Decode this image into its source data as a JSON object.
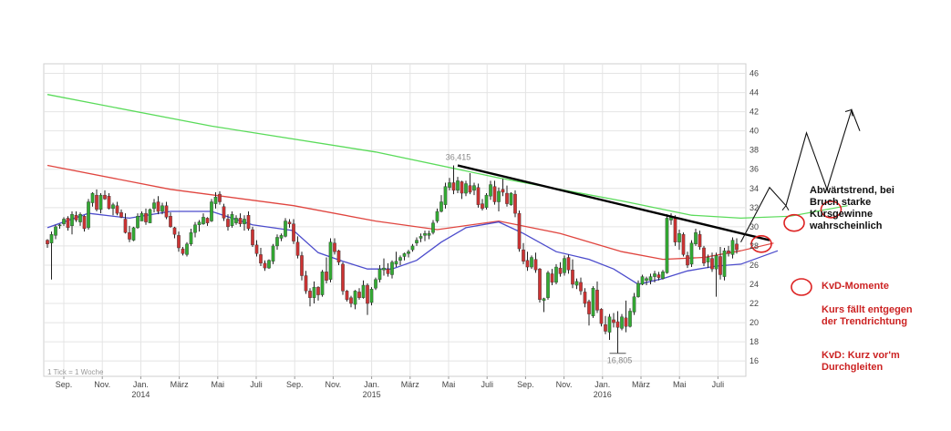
{
  "chart_data": {
    "type": "candlestick",
    "title": "",
    "xlabel": "",
    "ylabel": "",
    "ylim": [
      14.4,
      47
    ],
    "yticks": [
      16,
      18,
      20,
      22,
      24,
      26,
      28,
      30,
      32,
      34,
      36,
      38,
      40,
      42,
      44,
      46
    ],
    "x_month_labels": [
      "Sep.",
      "Nov.",
      "Jan.",
      "März",
      "Mai",
      "Juli",
      "Sep.",
      "Nov.",
      "Jan.",
      "März",
      "Mai",
      "Juli",
      "Sep.",
      "Nov.",
      "Jan.",
      "März",
      "Mai",
      "Juli"
    ],
    "x_year_labels": [
      {
        "label": "2014",
        "month_index": 2
      },
      {
        "label": "2015",
        "month_index": 8
      },
      {
        "label": "2016",
        "month_index": 14
      }
    ],
    "tick_info": "1 Tick = 1 Woche",
    "high_label": "36,415",
    "low_label": "16,805",
    "candles": [
      [
        0,
        28.6,
        28.7,
        27.8,
        28.2
      ],
      [
        1,
        28.3,
        29.5,
        24.5,
        29.2
      ],
      [
        2,
        29.1,
        30.2,
        28.7,
        30.0
      ],
      [
        3,
        30.1,
        30.3,
        29.8,
        30.2
      ],
      [
        4,
        30.3,
        31.0,
        30.1,
        30.8
      ],
      [
        5,
        30.9,
        31.1,
        29.6,
        29.9
      ],
      [
        6,
        30.1,
        31.6,
        29.2,
        31.3
      ],
      [
        7,
        31.2,
        31.6,
        30.5,
        30.7
      ],
      [
        8,
        30.5,
        31.5,
        30.1,
        31.3
      ],
      [
        9,
        31.1,
        31.2,
        29.5,
        29.8
      ],
      [
        10,
        29.9,
        32.9,
        29.7,
        32.6
      ],
      [
        11,
        32.5,
        33.6,
        32.1,
        33.5
      ],
      [
        12,
        33.3,
        33.9,
        31.6,
        31.8
      ],
      [
        13,
        31.8,
        33.5,
        31.4,
        33.3
      ],
      [
        14,
        33.3,
        33.8,
        32.8,
        32.9
      ],
      [
        15,
        33.2,
        33.5,
        31.8,
        31.9
      ],
      [
        16,
        31.9,
        32.5,
        31.2,
        32.3
      ],
      [
        17,
        32.2,
        32.6,
        31.2,
        31.4
      ],
      [
        18,
        31.5,
        31.8,
        30.9,
        31.0
      ],
      [
        19,
        30.8,
        31.4,
        29.3,
        29.4
      ],
      [
        20,
        29.4,
        30.1,
        28.4,
        28.7
      ],
      [
        21,
        28.6,
        30.0,
        28.5,
        29.9
      ],
      [
        22,
        29.9,
        31.4,
        29.8,
        31.1
      ],
      [
        23,
        30.6,
        31.6,
        30.6,
        31.4
      ],
      [
        24,
        31.4,
        31.9,
        30.2,
        30.5
      ],
      [
        25,
        30.4,
        31.9,
        30.4,
        31.8
      ],
      [
        26,
        31.9,
        32.9,
        31.5,
        32.5
      ],
      [
        27,
        32.6,
        33.2,
        31.3,
        31.6
      ],
      [
        28,
        31.6,
        32.5,
        31.3,
        32.2
      ],
      [
        29,
        32.2,
        32.6,
        30.8,
        31.0
      ],
      [
        30,
        31.1,
        31.5,
        29.9,
        30.0
      ],
      [
        31,
        29.9,
        30.0,
        28.8,
        29.2
      ],
      [
        32,
        29.1,
        29.5,
        27.4,
        27.8
      ],
      [
        33,
        27.7,
        27.9,
        27.0,
        27.2
      ],
      [
        34,
        27.1,
        28.4,
        26.9,
        28.2
      ],
      [
        35,
        28.2,
        29.8,
        28.0,
        29.4
      ],
      [
        36,
        29.4,
        30.5,
        28.9,
        30.2
      ],
      [
        37,
        30.2,
        30.7,
        29.5,
        30.5
      ],
      [
        38,
        30.3,
        31.4,
        30.2,
        31.0
      ],
      [
        39,
        30.9,
        31.0,
        30.1,
        30.4
      ],
      [
        40,
        30.6,
        32.9,
        30.5,
        32.6
      ],
      [
        41,
        32.4,
        33.6,
        31.9,
        33.1
      ],
      [
        42,
        33.4,
        33.7,
        32.3,
        32.6
      ],
      [
        43,
        32.1,
        32.4,
        30.6,
        30.9
      ],
      [
        44,
        30.8,
        31.3,
        29.6,
        30.0
      ],
      [
        45,
        30.1,
        31.6,
        29.9,
        31.3
      ],
      [
        46,
        30.4,
        31.2,
        30.2,
        30.9
      ],
      [
        47,
        30.9,
        31.4,
        30.0,
        30.3
      ],
      [
        48,
        30.3,
        31.2,
        29.6,
        30.8
      ],
      [
        49,
        31.2,
        31.6,
        29.6,
        29.8
      ],
      [
        50,
        29.7,
        30.0,
        27.9,
        28.1
      ],
      [
        51,
        28.1,
        28.6,
        26.9,
        27.2
      ],
      [
        52,
        27.1,
        27.8,
        25.9,
        26.2
      ],
      [
        53,
        26.2,
        26.5,
        25.4,
        25.7
      ],
      [
        54,
        25.7,
        26.6,
        25.6,
        26.5
      ],
      [
        55,
        26.4,
        28.2,
        26.1,
        28.0
      ],
      [
        56,
        28.0,
        29.2,
        27.6,
        28.9
      ],
      [
        57,
        28.8,
        29.3,
        28.5,
        29.1
      ],
      [
        58,
        29.0,
        30.9,
        28.9,
        30.6
      ],
      [
        59,
        30.5,
        30.8,
        29.9,
        30.3
      ],
      [
        60,
        30.3,
        30.8,
        28.2,
        28.5
      ],
      [
        61,
        28.4,
        29.0,
        26.7,
        27.0
      ],
      [
        62,
        27.0,
        27.4,
        24.4,
        24.9
      ],
      [
        63,
        24.9,
        25.4,
        23.0,
        23.3
      ],
      [
        64,
        23.3,
        23.6,
        21.7,
        22.6
      ],
      [
        65,
        22.6,
        24.3,
        22.0,
        23.7
      ],
      [
        66,
        23.7,
        23.8,
        22.3,
        22.9
      ],
      [
        67,
        22.9,
        25.5,
        22.7,
        25.3
      ],
      [
        68,
        25.3,
        26.8,
        24.1,
        24.4
      ],
      [
        69,
        24.5,
        28.8,
        24.2,
        28.4
      ],
      [
        70,
        28.3,
        28.8,
        27.1,
        27.4
      ],
      [
        71,
        27.5,
        27.6,
        26.0,
        26.3
      ],
      [
        72,
        26.1,
        26.3,
        22.9,
        23.3
      ],
      [
        73,
        23.3,
        23.4,
        22.2,
        22.4
      ],
      [
        74,
        22.6,
        22.8,
        21.6,
        22.0
      ],
      [
        75,
        21.9,
        23.4,
        21.4,
        23.3
      ],
      [
        76,
        23.2,
        23.6,
        22.4,
        22.6
      ],
      [
        77,
        22.6,
        24.4,
        22.5,
        23.9
      ],
      [
        78,
        23.9,
        24.1,
        20.8,
        22.0
      ],
      [
        79,
        22.1,
        23.7,
        21.8,
        23.5
      ],
      [
        80,
        23.6,
        24.7,
        23.4,
        24.5
      ],
      [
        81,
        24.5,
        26.0,
        24.2,
        25.6
      ],
      [
        82,
        25.5,
        26.7,
        24.9,
        25.7
      ],
      [
        83,
        25.6,
        26.2,
        24.8,
        25.1
      ],
      [
        84,
        25.0,
        26.5,
        24.6,
        26.3
      ],
      [
        85,
        26.1,
        27.4,
        25.8,
        26.4
      ],
      [
        86,
        26.5,
        27.0,
        26.0,
        26.8
      ],
      [
        87,
        26.9,
        27.3,
        26.5,
        27.2
      ],
      [
        88,
        27.2,
        27.6,
        26.8,
        27.4
      ],
      [
        89,
        27.6,
        28.2,
        27.4,
        28.0
      ],
      [
        90,
        28.3,
        28.9,
        28.0,
        28.6
      ],
      [
        91,
        28.8,
        29.3,
        28.4,
        29.0
      ],
      [
        92,
        29.1,
        29.6,
        28.5,
        29.3
      ],
      [
        93,
        29.1,
        29.6,
        28.7,
        29.3
      ],
      [
        94,
        29.4,
        30.7,
        29.2,
        30.4
      ],
      [
        95,
        30.6,
        31.9,
        30.4,
        31.6
      ],
      [
        96,
        31.6,
        33.3,
        31.5,
        32.6
      ],
      [
        97,
        32.3,
        34.6,
        31.9,
        34.2
      ],
      [
        98,
        34.1,
        35.1,
        33.8,
        34.6
      ],
      [
        99,
        34.6,
        36.4,
        33.4,
        33.8
      ],
      [
        100,
        33.8,
        35.2,
        33.5,
        34.8
      ],
      [
        101,
        34.7,
        34.8,
        32.9,
        33.5
      ],
      [
        102,
        33.5,
        34.8,
        33.2,
        34.5
      ],
      [
        103,
        34.3,
        35.6,
        33.4,
        33.6
      ],
      [
        104,
        33.8,
        34.6,
        33.3,
        34.3
      ],
      [
        105,
        34.1,
        34.5,
        32.0,
        32.3
      ],
      [
        106,
        32.4,
        32.9,
        31.7,
        31.9
      ],
      [
        107,
        32.0,
        33.5,
        31.8,
        33.3
      ],
      [
        108,
        33.2,
        34.8,
        32.8,
        34.4
      ],
      [
        109,
        34.2,
        34.8,
        32.3,
        32.6
      ],
      [
        110,
        32.6,
        34.1,
        31.6,
        33.7
      ],
      [
        111,
        33.9,
        35.0,
        33.2,
        33.6
      ],
      [
        112,
        33.5,
        34.3,
        32.1,
        32.4
      ],
      [
        113,
        32.3,
        33.6,
        32.2,
        33.5
      ],
      [
        114,
        33.4,
        33.8,
        31.0,
        31.4
      ],
      [
        115,
        31.4,
        31.7,
        27.4,
        27.7
      ],
      [
        116,
        27.6,
        28.3,
        26.1,
        26.4
      ],
      [
        117,
        26.5,
        27.4,
        25.4,
        25.8
      ],
      [
        118,
        25.8,
        27.0,
        25.6,
        26.8
      ],
      [
        119,
        26.6,
        27.3,
        25.2,
        25.5
      ],
      [
        120,
        25.6,
        25.7,
        22.1,
        22.4
      ],
      [
        121,
        22.3,
        22.6,
        21.1,
        22.5
      ],
      [
        122,
        22.6,
        25.4,
        22.4,
        25.2
      ],
      [
        123,
        25.1,
        25.6,
        23.9,
        24.2
      ],
      [
        124,
        24.2,
        26.1,
        24.0,
        25.8
      ],
      [
        125,
        25.7,
        26.3,
        24.8,
        25.1
      ],
      [
        126,
        25.2,
        27.0,
        24.9,
        26.7
      ],
      [
        127,
        26.8,
        27.1,
        25.1,
        25.5
      ],
      [
        128,
        25.5,
        26.6,
        23.6,
        24.0
      ],
      [
        129,
        23.9,
        24.6,
        23.5,
        24.3
      ],
      [
        130,
        24.2,
        24.7,
        22.9,
        23.3
      ],
      [
        131,
        23.2,
        23.6,
        21.6,
        22.0
      ],
      [
        132,
        22.2,
        22.4,
        19.7,
        20.9
      ],
      [
        133,
        20.7,
        23.8,
        20.5,
        23.6
      ],
      [
        134,
        23.4,
        24.3,
        21.0,
        21.3
      ],
      [
        135,
        21.4,
        21.5,
        19.6,
        19.9
      ],
      [
        136,
        19.8,
        20.7,
        18.8,
        19.1
      ],
      [
        137,
        19.0,
        20.9,
        18.2,
        20.6
      ],
      [
        138,
        20.3,
        21.0,
        19.5,
        20.0
      ],
      [
        139,
        20.1,
        21.2,
        16.8,
        19.5
      ],
      [
        140,
        19.4,
        20.9,
        19.2,
        20.6
      ],
      [
        141,
        20.5,
        22.3,
        19.0,
        19.6
      ],
      [
        142,
        19.6,
        21.5,
        19.5,
        21.2
      ],
      [
        143,
        21.1,
        23.1,
        20.8,
        22.7
      ],
      [
        144,
        22.7,
        24.4,
        22.6,
        24.1
      ],
      [
        145,
        24.0,
        25.0,
        23.9,
        24.8
      ],
      [
        146,
        24.4,
        24.8,
        23.9,
        24.6
      ],
      [
        147,
        24.4,
        25.1,
        24.0,
        24.8
      ],
      [
        148,
        24.8,
        25.4,
        24.2,
        25.1
      ],
      [
        149,
        25.0,
        25.3,
        24.4,
        24.7
      ],
      [
        150,
        24.6,
        25.5,
        24.5,
        25.3
      ],
      [
        151,
        25.2,
        31.3,
        25.1,
        30.9
      ],
      [
        152,
        30.7,
        31.4,
        30.2,
        31.0
      ],
      [
        153,
        30.9,
        31.2,
        28.0,
        28.4
      ],
      [
        154,
        28.4,
        29.7,
        27.6,
        29.3
      ],
      [
        155,
        29.2,
        29.4,
        26.9,
        27.1
      ],
      [
        156,
        27.0,
        27.4,
        25.7,
        26.0
      ],
      [
        157,
        26.1,
        28.6,
        25.8,
        28.3
      ],
      [
        158,
        28.2,
        29.8,
        28.0,
        29.4
      ],
      [
        159,
        29.2,
        29.6,
        27.6,
        27.9
      ],
      [
        160,
        27.8,
        28.0,
        25.9,
        26.2
      ],
      [
        161,
        26.3,
        27.1,
        25.7,
        26.8
      ],
      [
        162,
        26.7,
        27.3,
        25.3,
        25.6
      ],
      [
        163,
        25.6,
        27.3,
        22.7,
        27.0
      ],
      [
        164,
        26.9,
        27.9,
        24.5,
        25.0
      ],
      [
        165,
        24.8,
        27.8,
        24.4,
        27.5
      ],
      [
        166,
        27.5,
        28.0,
        26.9,
        27.2
      ],
      [
        167,
        27.1,
        28.9,
        26.7,
        28.6
      ],
      [
        168,
        28.2,
        28.8,
        27.2,
        27.6
      ]
    ],
    "series": [
      {
        "name": "",
        "color": "#5adb5a",
        "points": [
          [
            0,
            43.8
          ],
          [
            40,
            40.5
          ],
          [
            80,
            37.8
          ],
          [
            110,
            35.1
          ],
          [
            140,
            32.7
          ],
          [
            157,
            31.2
          ],
          [
            169,
            30.9
          ]
        ]
      },
      {
        "name": "",
        "color": "#e0453f",
        "points": [
          [
            0,
            36.4
          ],
          [
            30,
            33.9
          ],
          [
            60,
            32.2
          ],
          [
            80,
            30.6
          ],
          [
            95,
            29.7
          ],
          [
            110,
            30.6
          ],
          [
            125,
            29.3
          ],
          [
            140,
            27.4
          ],
          [
            150,
            26.6
          ],
          [
            160,
            26.8
          ],
          [
            169,
            27.5
          ]
        ]
      },
      {
        "name": "",
        "color": "#4c4ccc",
        "points": [
          [
            0,
            29.9
          ],
          [
            10,
            31.4
          ],
          [
            20,
            30.9
          ],
          [
            30,
            31.6
          ],
          [
            40,
            31.6
          ],
          [
            50,
            30.2
          ],
          [
            60,
            29.6
          ],
          [
            66,
            27.3
          ],
          [
            72,
            26.4
          ],
          [
            78,
            25.6
          ],
          [
            84,
            25.6
          ],
          [
            90,
            26.5
          ],
          [
            96,
            28.4
          ],
          [
            102,
            29.9
          ],
          [
            110,
            30.5
          ],
          [
            116,
            29.3
          ],
          [
            124,
            27.4
          ],
          [
            132,
            26.6
          ],
          [
            138,
            25.6
          ],
          [
            144,
            24.0
          ],
          [
            150,
            24.6
          ],
          [
            156,
            25.4
          ],
          [
            163,
            25.9
          ],
          [
            169,
            26.1
          ]
        ]
      }
    ],
    "trendline": [
      [
        100,
        36.4
      ],
      [
        176,
        28.6
      ]
    ],
    "extensions": {
      "projection_arrow": [
        [
          169,
          28.4
        ],
        [
          176,
          34.1
        ],
        [
          180,
          32.2
        ],
        [
          185,
          39.8
        ],
        [
          190,
          33.9
        ],
        [
          196,
          42.2
        ],
        [
          198,
          40.0
        ]
      ],
      "green_extension": [
        [
          169,
          30.9
        ],
        [
          181,
          31.1
        ],
        [
          195,
          32.2
        ]
      ],
      "red_extension": [
        [
          169,
          27.5
        ],
        [
          177,
          28.3
        ]
      ],
      "blue_extension": [
        [
          169,
          26.1
        ],
        [
          178,
          27.5
        ]
      ]
    },
    "circles": [
      {
        "x": 174,
        "y": 28.2
      },
      {
        "x": 182,
        "y": 30.4
      },
      {
        "x": 191,
        "y": 31.8
      }
    ],
    "annotations": {
      "trend": "Abwärtstrend, bei Bruch starke Kursgewinne wahrscheinlich",
      "kvd_title": "KvD-Momente",
      "kvd_desc": "Kurs fällt entgegen der Trendrichtung",
      "kvd_def": "KvD: Kurz vor'm Durchgleiten"
    },
    "colors": {
      "up": "#33aa33",
      "down": "#cc3333",
      "wick": "#222222",
      "grid": "#e4e4e4",
      "trendline": "#000000",
      "circle": "#dd2222",
      "annotation_red": "#cc2222"
    }
  }
}
